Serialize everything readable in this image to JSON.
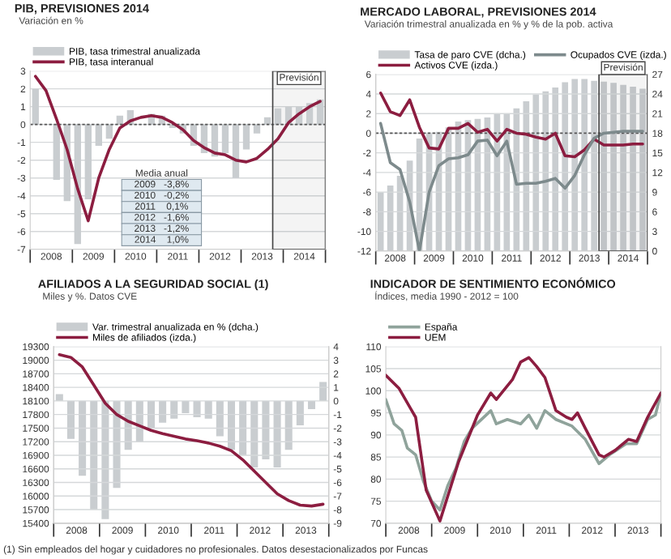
{
  "chart_data": [
    {
      "type": "bar",
      "title": "PIB, PREVISIONES 2014",
      "subtitle": "Variación en %",
      "series": [
        {
          "name": "PIB, tasa trimestral anualizada",
          "type": "bar",
          "color": "#c9cdd0",
          "x": [
            2008.125,
            2008.375,
            2008.625,
            2008.875,
            2009.125,
            2009.375,
            2009.625,
            2009.875,
            2010.125,
            2010.375,
            2010.625,
            2010.875,
            2011.125,
            2011.375,
            2011.625,
            2011.875,
            2012.125,
            2012.375,
            2012.625,
            2012.875,
            2013.125,
            2013.375,
            2013.625,
            2013.875,
            2014.125,
            2014.375,
            2014.625,
            2014.875
          ],
          "values": [
            2.0,
            null,
            -3.1,
            -4.3,
            -6.7,
            -4.2,
            -1.2,
            -0.8,
            0.5,
            0.8,
            null,
            0.6,
            0.5,
            -0.2,
            -0.5,
            -1.2,
            -1.6,
            -1.8,
            -1.6,
            -3.0,
            -1.4,
            -0.5,
            0.4,
            0.9,
            1.0,
            1.0,
            1.2,
            1.4
          ]
        },
        {
          "name": "PIB, tasa interanual",
          "type": "line",
          "color": "#8c1d40",
          "x": [
            2008.125,
            2008.375,
            2008.625,
            2008.875,
            2009.125,
            2009.375,
            2009.625,
            2009.875,
            2010.125,
            2010.375,
            2010.625,
            2010.875,
            2011.125,
            2011.375,
            2011.625,
            2011.875,
            2012.125,
            2012.375,
            2012.625,
            2012.875,
            2013.125,
            2013.375,
            2013.625,
            2013.875,
            2014.125,
            2014.375,
            2014.625,
            2014.875
          ],
          "values": [
            2.7,
            1.9,
            0.3,
            -1.4,
            -3.6,
            -5.4,
            -3.0,
            -1.4,
            -0.2,
            0.2,
            0.4,
            0.5,
            0.4,
            0.1,
            -0.3,
            -0.9,
            -1.3,
            -1.6,
            -1.7,
            -2.0,
            -2.1,
            -1.9,
            -1.4,
            -0.8,
            0.1,
            0.6,
            1.0,
            1.3
          ]
        }
      ],
      "xlim": [
        2008,
        2015
      ],
      "xticks": [
        {
          "value": 2008,
          "label": null
        },
        {
          "value": 2008.5,
          "label": "2008"
        },
        {
          "value": 2009,
          "label": null
        },
        {
          "value": 2009.5,
          "label": "2009"
        },
        {
          "value": 2010,
          "label": null
        },
        {
          "value": 2010.5,
          "label": "2010"
        },
        {
          "value": 2011,
          "label": null
        },
        {
          "value": 2011.5,
          "label": "2011"
        },
        {
          "value": 2012,
          "label": null
        },
        {
          "value": 2012.5,
          "label": "2012"
        },
        {
          "value": 2013,
          "label": null
        },
        {
          "value": 2013.5,
          "label": "2013"
        },
        {
          "value": 2014,
          "label": null
        },
        {
          "value": 2014.5,
          "label": "2014"
        },
        {
          "value": 2015,
          "label": null
        }
      ],
      "ylim": [
        -7,
        3
      ],
      "yticks": [
        -7,
        -6,
        -5,
        -4,
        -3,
        -2,
        -1,
        0,
        1,
        2,
        3
      ],
      "grid": "y",
      "legend": "top left",
      "ref_lines": [
        {
          "axis": "y",
          "value": 0,
          "color": "#555555",
          "line_style": "dashed"
        }
      ],
      "bands": [
        {
          "axis": "x",
          "from": 2013.75,
          "to": 2015,
          "label": "Previsión",
          "color": "#444444"
        }
      ],
      "annotations": [
        "Media anual",
        "2009   -3,8%",
        "2010   -0,2%",
        "2011    0,1%",
        "2012   -1,6%",
        "2013   -1,2%",
        "2014    1,0%"
      ]
    },
    {
      "type": "line",
      "title": "MERCADO LABORAL, PREVISIONES 2014",
      "subtitle": "Variación trimestral anualizada en % y % de la pob. activa",
      "series": [
        {
          "name": "Tasa de paro CVE (dcha.)",
          "type": "bar",
          "axis": "y2",
          "color": "#c9cdd0",
          "x": [
            2008.125,
            2008.375,
            2008.625,
            2008.875,
            2009.125,
            2009.375,
            2009.625,
            2009.875,
            2010.125,
            2010.375,
            2010.625,
            2010.875,
            2011.125,
            2011.375,
            2011.625,
            2011.875,
            2012.125,
            2012.375,
            2012.625,
            2012.875,
            2013.125,
            2013.375,
            2013.625,
            2013.875,
            2014.125,
            2014.375,
            2014.625,
            2014.875
          ],
          "values": [
            9.0,
            10.0,
            11.5,
            13.8,
            17.2,
            17.9,
            18.2,
            18.9,
            19.8,
            20.0,
            20.2,
            20.4,
            20.9,
            20.9,
            21.8,
            22.9,
            23.9,
            24.4,
            25.0,
            25.8,
            26.3,
            26.3,
            26.0,
            25.9,
            25.7,
            25.4,
            25.1,
            24.8
          ]
        },
        {
          "name": "Activos CVE (izda.)",
          "type": "line",
          "color": "#8c1d40",
          "x": [
            2008.125,
            2008.375,
            2008.625,
            2008.875,
            2009.125,
            2009.375,
            2009.625,
            2009.875,
            2010.125,
            2010.375,
            2010.625,
            2010.875,
            2011.125,
            2011.375,
            2011.625,
            2011.875,
            2012.125,
            2012.375,
            2012.625,
            2012.875,
            2013.125,
            2013.375,
            2013.625,
            2013.875,
            2014.125,
            2014.375,
            2014.625,
            2014.875
          ],
          "values": [
            4.1,
            2.2,
            1.8,
            3.4,
            0.6,
            -1.5,
            -1.6,
            0.5,
            0.5,
            1.0,
            0.1,
            0.4,
            -0.8,
            0.4,
            0.0,
            -0.1,
            -0.4,
            -0.6,
            0.0,
            -2.3,
            -2.4,
            -1.7,
            -0.6,
            -1.2,
            -1.2,
            -1.2,
            -1.1,
            -1.1
          ]
        },
        {
          "name": "Ocupados CVE (izda.)",
          "type": "line",
          "color": "#7d8a8c",
          "x": [
            2008.125,
            2008.375,
            2008.625,
            2008.875,
            2009.125,
            2009.375,
            2009.625,
            2009.875,
            2010.125,
            2010.375,
            2010.625,
            2010.875,
            2011.125,
            2011.375,
            2011.625,
            2011.875,
            2012.125,
            2012.375,
            2012.625,
            2012.875,
            2013.125,
            2013.375,
            2013.625,
            2013.875,
            2014.125,
            2014.375,
            2014.625,
            2014.875
          ],
          "values": [
            1.0,
            -3.0,
            -3.7,
            -7.0,
            -12.0,
            -6.0,
            -3.3,
            -2.6,
            -2.5,
            -2.2,
            -0.8,
            -0.7,
            -2.3,
            -0.8,
            -5.2,
            -5.1,
            -5.1,
            -4.9,
            -4.6,
            -5.6,
            -4.3,
            -2.2,
            -0.5,
            0.0,
            0.1,
            0.2,
            0.2,
            0.2
          ]
        }
      ],
      "xlim": [
        2008,
        2015
      ],
      "xticks": [
        {
          "value": 2008,
          "label": null
        },
        {
          "value": 2008.5,
          "label": "2008"
        },
        {
          "value": 2009,
          "label": null
        },
        {
          "value": 2009.5,
          "label": "2009"
        },
        {
          "value": 2010,
          "label": null
        },
        {
          "value": 2010.5,
          "label": "2010"
        },
        {
          "value": 2011,
          "label": null
        },
        {
          "value": 2011.5,
          "label": "2011"
        },
        {
          "value": 2012,
          "label": null
        },
        {
          "value": 2012.5,
          "label": "2012"
        },
        {
          "value": 2013,
          "label": null
        },
        {
          "value": 2013.5,
          "label": "2013"
        },
        {
          "value": 2014,
          "label": null
        },
        {
          "value": 2014.5,
          "label": "2014"
        },
        {
          "value": 2015,
          "label": null
        }
      ],
      "ylim": [
        -12,
        6
      ],
      "yticks": [
        -12,
        -10,
        -8,
        -6,
        -4,
        -2,
        0,
        2,
        4,
        6
      ],
      "y2lim": [
        0,
        27
      ],
      "y2ticks": [
        0,
        3,
        6,
        9,
        12,
        15,
        18,
        21,
        24,
        27
      ],
      "grid": "y",
      "legend": "top left",
      "ref_lines": [
        {
          "axis": "y",
          "value": 0,
          "color": "#555555",
          "line_style": "dashed"
        }
      ],
      "bands": [
        {
          "axis": "x",
          "from": 2013.75,
          "to": 2015,
          "label": "Previsión",
          "color": "#444444"
        }
      ]
    },
    {
      "type": "line",
      "title": "AFILIADOS A LA SEGURIDAD SOCIAL (1)",
      "subtitle": "Miles y %. Datos CVE",
      "series": [
        {
          "name": "Var. trimestral anualizada en % (dcha.)",
          "type": "bar",
          "axis": "y2",
          "color": "#c9cdd0",
          "x": [
            2008.125,
            2008.375,
            2008.625,
            2008.875,
            2009.125,
            2009.375,
            2009.625,
            2009.875,
            2010.125,
            2010.375,
            2010.625,
            2010.875,
            2011.125,
            2011.375,
            2011.625,
            2011.875,
            2012.125,
            2012.375,
            2012.625,
            2012.875,
            2013.125,
            2013.375,
            2013.625,
            2013.875
          ],
          "values": [
            0.5,
            -2.8,
            -5.5,
            -8.0,
            -8.7,
            -6.4,
            -3.6,
            -3.0,
            -2.0,
            -1.6,
            -1.3,
            -0.9,
            -1.2,
            -1.3,
            -2.6,
            -3.6,
            -4.0,
            -4.9,
            -4.3,
            -4.9,
            -3.6,
            -1.8,
            -0.6,
            1.4
          ]
        },
        {
          "name": "Miles de afiliados (izda.)",
          "type": "line",
          "color": "#8c1d40",
          "x": [
            2008.125,
            2008.375,
            2008.625,
            2008.875,
            2009.125,
            2009.375,
            2009.625,
            2009.875,
            2010.125,
            2010.375,
            2010.625,
            2010.875,
            2011.125,
            2011.375,
            2011.625,
            2011.875,
            2012.125,
            2012.375,
            2012.625,
            2012.875,
            2013.125,
            2013.375,
            2013.625,
            2013.875
          ],
          "values": [
            19120,
            19060,
            18850,
            18450,
            18050,
            17800,
            17650,
            17550,
            17450,
            17380,
            17320,
            17260,
            17220,
            17170,
            17100,
            17000,
            16800,
            16550,
            16300,
            16050,
            15900,
            15800,
            15780,
            15820
          ]
        }
      ],
      "xlim": [
        2008,
        2014
      ],
      "xticks": [
        {
          "value": 2008,
          "label": null
        },
        {
          "value": 2008.5,
          "label": "2008"
        },
        {
          "value": 2009,
          "label": null
        },
        {
          "value": 2009.5,
          "label": "2009"
        },
        {
          "value": 2010,
          "label": null
        },
        {
          "value": 2010.5,
          "label": "2010"
        },
        {
          "value": 2011,
          "label": null
        },
        {
          "value": 2011.5,
          "label": "2011"
        },
        {
          "value": 2012,
          "label": null
        },
        {
          "value": 2012.5,
          "label": "2012"
        },
        {
          "value": 2013,
          "label": null
        },
        {
          "value": 2013.5,
          "label": "2013"
        },
        {
          "value": 2014,
          "label": null
        }
      ],
      "ylim": [
        15400,
        19300
      ],
      "yticks": [
        15400,
        15700,
        16000,
        16300,
        16600,
        16900,
        17200,
        17500,
        17800,
        18100,
        18400,
        18700,
        19000,
        19300
      ],
      "y2lim": [
        -9,
        4
      ],
      "y2ticks": [
        -9,
        -8,
        -7,
        -6,
        -5,
        -4,
        -3,
        -2,
        -1,
        0,
        1,
        2,
        3,
        4
      ],
      "grid": "y",
      "legend": "top left",
      "annotations": [
        "(1) Sin empleados del hogar y cuidadores no profesionales. Datos desestacionalizados por Funcas"
      ]
    },
    {
      "type": "line",
      "title": "INDICADOR DE SENTIMIENTO ECONÓMICO",
      "subtitle": "Índices, media 1990 - 2012 = 100",
      "series": [
        {
          "name": "España",
          "color": "#8fa39b",
          "x": [
            2008.0,
            2008.18,
            2008.35,
            2008.47,
            2008.65,
            2008.82,
            2009.0,
            2009.18,
            2009.35,
            2009.53,
            2009.71,
            2009.88,
            2010.29,
            2010.41,
            2010.65,
            2010.94,
            2011.12,
            2011.29,
            2011.47,
            2011.71,
            2012.06,
            2012.35,
            2012.65,
            2012.88,
            2013.24,
            2013.47,
            2013.71,
            2013.88,
            2014.0
          ],
          "values": [
            98,
            92.5,
            91,
            87,
            85.5,
            79.5,
            75,
            73,
            78.5,
            82.5,
            88.5,
            91.5,
            95.5,
            92.5,
            93.5,
            92.5,
            94.5,
            91.5,
            95.5,
            93.5,
            92,
            89,
            83.5,
            85.5,
            88,
            88,
            93.5,
            94.5,
            99.5
          ]
        },
        {
          "name": "UEM",
          "color": "#8c1d40",
          "x": [
            2008.0,
            2008.29,
            2008.65,
            2008.88,
            2009.18,
            2009.59,
            2010.0,
            2010.29,
            2010.41,
            2010.76,
            2010.94,
            2011.12,
            2011.29,
            2011.47,
            2011.71,
            2011.94,
            2012.06,
            2012.18,
            2012.35,
            2012.65,
            2012.76,
            2013.0,
            2013.29,
            2013.47,
            2013.71,
            2014.0
          ],
          "values": [
            103.5,
            100.5,
            94,
            77.5,
            70.5,
            84,
            94.5,
            99.5,
            98,
            102.5,
            106.5,
            107.5,
            105.5,
            103,
            95.5,
            94,
            93.5,
            95,
            91.5,
            85.5,
            85,
            86.5,
            89,
            88.5,
            94,
            99.5
          ]
        }
      ],
      "xlim": [
        2008,
        2014
      ],
      "xticks": [
        {
          "value": 2008,
          "label": null
        },
        {
          "value": 2008.5,
          "label": "2008"
        },
        {
          "value": 2009,
          "label": null
        },
        {
          "value": 2009.5,
          "label": "2009"
        },
        {
          "value": 2010,
          "label": null
        },
        {
          "value": 2010.5,
          "label": "2010"
        },
        {
          "value": 2011,
          "label": null
        },
        {
          "value": 2011.5,
          "label": "2011"
        },
        {
          "value": 2012,
          "label": null
        },
        {
          "value": 2012.5,
          "label": "2012"
        },
        {
          "value": 2013,
          "label": null
        },
        {
          "value": 2013.5,
          "label": "2013"
        },
        {
          "value": 2014,
          "label": null
        }
      ],
      "ylim": [
        70,
        110
      ],
      "yticks": [
        70,
        75,
        80,
        85,
        90,
        95,
        100,
        105,
        110
      ],
      "grid": "y",
      "legend": "top left"
    }
  ]
}
